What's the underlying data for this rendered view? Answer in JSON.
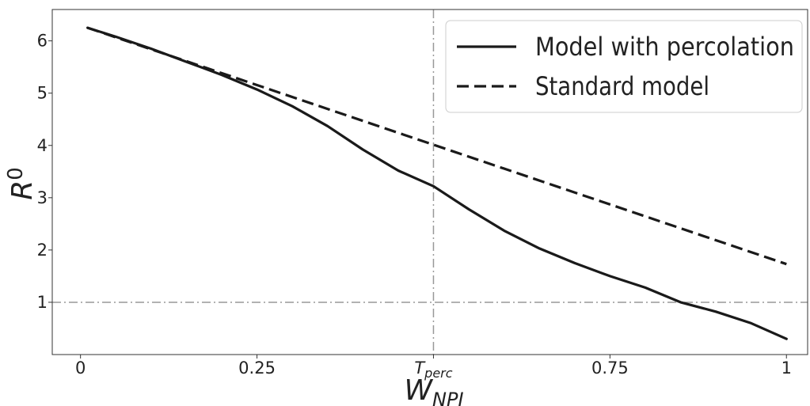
{
  "chart_data": {
    "type": "line",
    "xlabel": {
      "main": "W",
      "sub": "NPI"
    },
    "ylabel": {
      "main": "R",
      "sub": "0"
    },
    "xlim": [
      -0.04,
      1.03
    ],
    "ylim": [
      0,
      6.6
    ],
    "x_ticks": [
      {
        "value": 0,
        "label": "0"
      },
      {
        "value": 0.25,
        "label": "0.25"
      },
      {
        "value": 0.5,
        "label": "T",
        "sub": "perc"
      },
      {
        "value": 0.75,
        "label": "0.75"
      },
      {
        "value": 1,
        "label": "1"
      }
    ],
    "y_ticks": [
      {
        "value": 1,
        "label": "1"
      },
      {
        "value": 2,
        "label": "2"
      },
      {
        "value": 3,
        "label": "3"
      },
      {
        "value": 4,
        "label": "4"
      },
      {
        "value": 5,
        "label": "5"
      },
      {
        "value": 6,
        "label": "6"
      }
    ],
    "reference_lines": [
      {
        "orientation": "vertical",
        "value": 0.5,
        "style": "dash-dot",
        "color": "#999999"
      },
      {
        "orientation": "horizontal",
        "value": 1,
        "style": "dash-dot",
        "color": "#999999"
      }
    ],
    "series": [
      {
        "name": "Model with percolation",
        "style": "solid",
        "color": "#1a1a1a",
        "x": [
          0.01,
          0.05,
          0.1,
          0.15,
          0.2,
          0.25,
          0.3,
          0.35,
          0.4,
          0.45,
          0.5,
          0.55,
          0.6,
          0.65,
          0.7,
          0.75,
          0.8,
          0.85,
          0.9,
          0.95,
          1.0
        ],
        "y": [
          6.25,
          6.08,
          5.85,
          5.6,
          5.35,
          5.07,
          4.75,
          4.37,
          3.92,
          3.52,
          3.22,
          2.78,
          2.37,
          2.03,
          1.75,
          1.5,
          1.28,
          1.0,
          0.82,
          0.6,
          0.3
        ]
      },
      {
        "name": "Standard model",
        "style": "dashed",
        "color": "#1a1a1a",
        "x": [
          0.01,
          1.0
        ],
        "y": [
          6.25,
          1.73
        ]
      }
    ],
    "legend": {
      "position": "top-right"
    },
    "grid": false
  }
}
